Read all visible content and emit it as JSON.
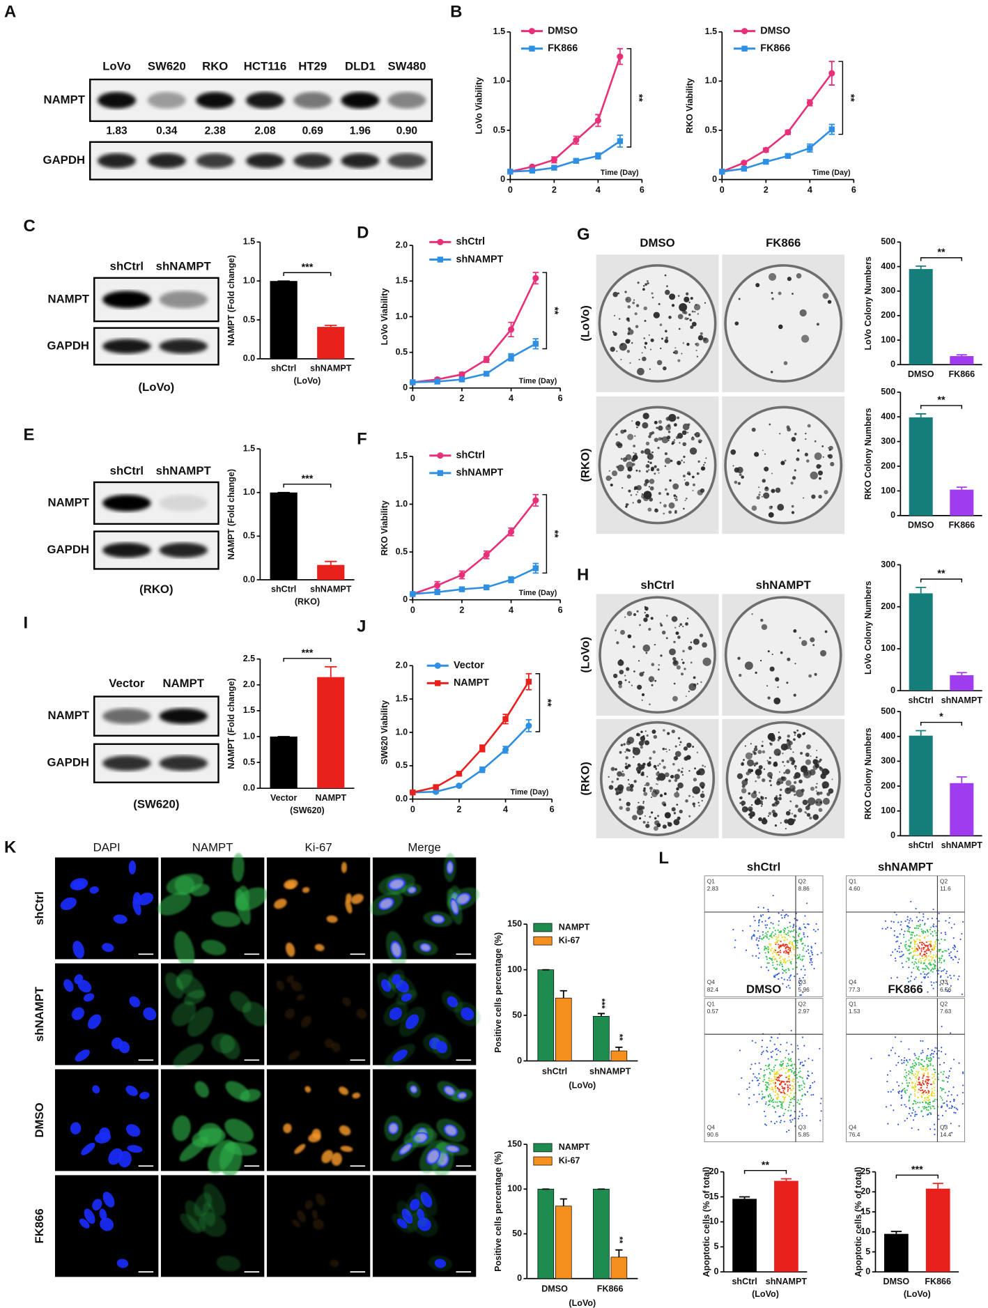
{
  "panel_letters": [
    "A",
    "B",
    "C",
    "D",
    "E",
    "F",
    "G",
    "H",
    "I",
    "J",
    "K",
    "L"
  ],
  "blots": [
    {
      "lanes": [
        "LoVo",
        "SW620",
        "RKO",
        "HCT116",
        "HT29",
        "DLD1",
        "SW480"
      ],
      "rows": [
        "NAMPT",
        "GAPDH"
      ],
      "quantities": [
        "1.83",
        "0.34",
        "2.38",
        "2.08",
        "0.69",
        "1.96",
        "0.90"
      ]
    },
    {
      "lanes": [
        "shCtrl",
        "shNAMPT"
      ],
      "rows": [
        "NAMPT",
        "GAPDH"
      ],
      "caption": "(LoVo)"
    },
    {
      "lanes": [
        "shCtrl",
        "shNAMPT"
      ],
      "rows": [
        "NAMPT",
        "GAPDH"
      ],
      "caption": "(RKO)"
    },
    {
      "lanes": [
        "Vector",
        "NAMPT"
      ],
      "rows": [
        "NAMPT",
        "GAPDH"
      ],
      "caption": "(SW620)"
    }
  ],
  "colony_plates": [
    {
      "columns": [
        "DMSO",
        "FK866"
      ],
      "rows": [
        "(LoVo)",
        "(RKO)"
      ]
    },
    {
      "columns": [
        "shCtrl",
        "shNAMPT"
      ],
      "rows": [
        "(LoVo)",
        "(RKO)"
      ]
    }
  ],
  "immunofluorescence": {
    "columns": [
      "DAPI",
      "NAMPT",
      "Ki-67",
      "Merge"
    ],
    "colors": [
      "#2233dd",
      "#1e9a4a",
      "#f07f7f",
      "#111111"
    ],
    "rows": [
      "shCtrl",
      "shNAMPT",
      "DMSO",
      "FK866"
    ]
  },
  "flow_cytometry": [
    {
      "title": "shCtrl",
      "quadrants": [
        {
          "name": "Q1",
          "value": "2.83"
        },
        {
          "name": "Q2",
          "value": "8.86"
        },
        {
          "name": "Q3",
          "value": "5.96"
        },
        {
          "name": "Q4",
          "value": "82.4"
        }
      ]
    },
    {
      "title": "shNAMPT",
      "quadrants": [
        {
          "name": "Q1",
          "value": "4.60"
        },
        {
          "name": "Q2",
          "value": "11.6"
        },
        {
          "name": "Q3",
          "value": "6.56"
        },
        {
          "name": "Q4",
          "value": "77.3"
        }
      ]
    },
    {
      "title": "DMSO",
      "quadrants": [
        {
          "name": "Q1",
          "value": "0.57"
        },
        {
          "name": "Q2",
          "value": "2.97"
        },
        {
          "name": "Q3",
          "value": "5.85"
        },
        {
          "name": "Q4",
          "value": "90.6"
        }
      ]
    },
    {
      "title": "FK866",
      "quadrants": [
        {
          "name": "Q1",
          "value": "1.53"
        },
        {
          "name": "Q2",
          "value": "7.63"
        },
        {
          "name": "Q3",
          "value": "14.4"
        },
        {
          "name": "Q4",
          "value": "76.4"
        }
      ]
    }
  ],
  "chart_data": [
    {
      "type": "line",
      "ylabel": "LoVo Viability",
      "xlabel": "Time (Day)",
      "x": [
        0,
        1,
        2,
        3,
        4,
        5
      ],
      "xlim": [
        0,
        6
      ],
      "xticks": [
        0,
        2,
        4,
        6
      ],
      "ylim": [
        0,
        1.5
      ],
      "yticks": [
        0,
        0.5,
        {
          "value": 1,
          "label": "1.0"
        },
        1.5
      ],
      "annotation": "**",
      "series": [
        {
          "name": "DMSO",
          "color": "#e8307a",
          "marker": "circle",
          "values": [
            0.08,
            0.13,
            0.2,
            0.4,
            0.6,
            1.25
          ],
          "errors": [
            0,
            0.01,
            0.03,
            0.04,
            0.06,
            0.08
          ]
        },
        {
          "name": "FK866",
          "color": "#2f8fe3",
          "marker": "square",
          "values": [
            0.08,
            0.09,
            0.12,
            0.19,
            0.24,
            0.39
          ],
          "errors": [
            0,
            0.01,
            0.01,
            0.02,
            0.03,
            0.06
          ]
        }
      ]
    },
    {
      "type": "line",
      "ylabel": "RKO Viability",
      "xlabel": "Time (Day)",
      "x": [
        0,
        1,
        2,
        3,
        4,
        5
      ],
      "xlim": [
        0,
        6
      ],
      "xticks": [
        0,
        2,
        4,
        6
      ],
      "ylim": [
        0,
        1.5
      ],
      "yticks": [
        0,
        0.5,
        {
          "value": 1,
          "label": "1.0"
        },
        1.5
      ],
      "annotation": "**",
      "series": [
        {
          "name": "DMSO",
          "color": "#e8307a",
          "marker": "circle",
          "values": [
            0.08,
            0.17,
            0.3,
            0.48,
            0.78,
            1.08
          ],
          "errors": [
            0,
            0.01,
            0.02,
            0.02,
            0.03,
            0.12
          ]
        },
        {
          "name": "FK866",
          "color": "#2f8fe3",
          "marker": "square",
          "values": [
            0.08,
            0.11,
            0.18,
            0.24,
            0.32,
            0.51
          ],
          "errors": [
            0,
            0.01,
            0.02,
            0.02,
            0.04,
            0.05
          ]
        }
      ]
    },
    {
      "type": "bar",
      "ylabel": "NAMPT (Fold change)",
      "categories": [
        "shCtrl",
        "shNAMPT"
      ],
      "values": [
        1,
        0.41
      ],
      "errors": [
        0,
        0.02
      ],
      "colors": [
        "#000000",
        "#e8211d"
      ],
      "ylim": [
        0,
        1.5
      ],
      "yticks": [
        {
          "value": 0,
          "label": "0.0"
        },
        0.5,
        {
          "value": 1,
          "label": "1.0"
        },
        1.5
      ],
      "subtitle": "(LoVo)",
      "annotation": "***"
    },
    {
      "type": "line",
      "ylabel": "LoVo Viability",
      "xlabel": "Time (Day)",
      "x": [
        0,
        1,
        2,
        3,
        4,
        5
      ],
      "xlim": [
        0,
        6
      ],
      "xticks": [
        0,
        2,
        4,
        6
      ],
      "ylim": [
        0,
        2
      ],
      "yticks": [
        0,
        0.5,
        {
          "value": 1,
          "label": "1.0"
        },
        1.5,
        {
          "value": 2,
          "label": "2.0"
        }
      ],
      "annotation": "**",
      "series": [
        {
          "name": "shCtrl",
          "color": "#e8307a",
          "marker": "circle",
          "values": [
            0.08,
            0.12,
            0.19,
            0.4,
            0.82,
            1.54
          ],
          "errors": [
            0,
            0.02,
            0.03,
            0.04,
            0.1,
            0.08
          ]
        },
        {
          "name": "shNAMPT",
          "color": "#2f8fe3",
          "marker": "square",
          "values": [
            0.08,
            0.09,
            0.12,
            0.2,
            0.43,
            0.62
          ],
          "errors": [
            0,
            0.01,
            0.02,
            0.02,
            0.05,
            0.07
          ]
        }
      ]
    },
    {
      "type": "bar",
      "ylabel": "LoVo Colony Numbers",
      "categories": [
        "DMSO",
        "FK866"
      ],
      "values": [
        390,
        35
      ],
      "errors": [
        12,
        5
      ],
      "colors": [
        "#167e7a",
        "#a03cf0"
      ],
      "ylim": [
        0,
        500
      ],
      "yticks": [
        0,
        100,
        200,
        300,
        400,
        500
      ],
      "annotation": "**"
    },
    {
      "type": "bar",
      "ylabel": "RKO Colony Numbers",
      "categories": [
        "DMSO",
        "FK866"
      ],
      "values": [
        398,
        105
      ],
      "errors": [
        14,
        10
      ],
      "colors": [
        "#167e7a",
        "#a03cf0"
      ],
      "ylim": [
        0,
        500
      ],
      "yticks": [
        0,
        100,
        200,
        300,
        400,
        500
      ],
      "annotation": "**"
    },
    {
      "type": "bar",
      "ylabel": "NAMPT (Fold change)",
      "categories": [
        "shCtrl",
        "shNAMPT"
      ],
      "values": [
        1,
        0.17
      ],
      "errors": [
        0,
        0.04
      ],
      "colors": [
        "#000000",
        "#e8211d"
      ],
      "ylim": [
        0,
        1.5
      ],
      "yticks": [
        {
          "value": 0,
          "label": "0.0"
        },
        0.5,
        {
          "value": 1,
          "label": "1.0"
        },
        1.5
      ],
      "subtitle": "(RKO)",
      "annotation": "***"
    },
    {
      "type": "line",
      "ylabel": "RKO Viability",
      "xlabel": "Time (Day)",
      "x": [
        0,
        1,
        2,
        3,
        4,
        5
      ],
      "xlim": [
        0,
        6
      ],
      "xticks": [
        0,
        2,
        4,
        6
      ],
      "ylim": [
        0,
        1.5
      ],
      "yticks": [
        0,
        0.5,
        {
          "value": 1,
          "label": "1.0"
        },
        1.5
      ],
      "annotation": "**",
      "series": [
        {
          "name": "shCtrl",
          "color": "#e8307a",
          "marker": "circle",
          "values": [
            0.06,
            0.15,
            0.26,
            0.47,
            0.71,
            1.04
          ],
          "errors": [
            0,
            0.04,
            0.04,
            0.04,
            0.04,
            0.06
          ]
        },
        {
          "name": "shNAMPT",
          "color": "#2f8fe3",
          "marker": "square",
          "values": [
            0.06,
            0.08,
            0.11,
            0.13,
            0.21,
            0.33
          ],
          "errors": [
            0,
            0.02,
            0.02,
            0.02,
            0.03,
            0.05
          ]
        }
      ]
    },
    {
      "type": "bar",
      "ylabel": "LoVo Colony Numbers",
      "categories": [
        "shCtrl",
        "shNAMPT"
      ],
      "values": [
        232,
        37
      ],
      "errors": [
        14,
        6
      ],
      "colors": [
        "#167e7a",
        "#a03cf0"
      ],
      "ylim": [
        0,
        300
      ],
      "yticks": [
        0,
        100,
        200,
        300
      ],
      "annotation": "**"
    },
    {
      "type": "bar",
      "ylabel": "RKO Colony Numbers",
      "categories": [
        "shCtrl",
        "shNAMPT"
      ],
      "values": [
        403,
        212
      ],
      "errors": [
        20,
        25
      ],
      "colors": [
        "#167e7a",
        "#a03cf0"
      ],
      "ylim": [
        0,
        500
      ],
      "yticks": [
        0,
        100,
        200,
        300,
        400,
        500
      ],
      "annotation": "*"
    },
    {
      "type": "bar",
      "ylabel": "NAMPT (Fold change)",
      "categories": [
        "Vector",
        "NAMPT"
      ],
      "values": [
        1,
        2.15
      ],
      "errors": [
        0,
        0.2
      ],
      "colors": [
        "#000000",
        "#e8211d"
      ],
      "ylim": [
        0,
        2.5
      ],
      "yticks": [
        {
          "value": 0,
          "label": "0.0"
        },
        0.5,
        {
          "value": 1,
          "label": "1.0"
        },
        1.5,
        {
          "value": 2,
          "label": "2.0"
        },
        2.5
      ],
      "subtitle": "(SW620)",
      "annotation": "***"
    },
    {
      "type": "line",
      "ylabel": "SW620 Viability",
      "xlabel": "Time (Day)",
      "x": [
        0,
        1,
        2,
        3,
        4,
        5
      ],
      "xlim": [
        0,
        6
      ],
      "xticks": [
        0,
        2,
        4,
        6
      ],
      "ylim": [
        0,
        2
      ],
      "yticks": [
        {
          "value": 0,
          "label": "0.0"
        },
        0.5,
        {
          "value": 1,
          "label": "1.0"
        },
        1.5,
        {
          "value": 2,
          "label": "2.0"
        }
      ],
      "annotation": "**",
      "series": [
        {
          "name": "Vector",
          "color": "#2f8fe3",
          "marker": "circle",
          "values": [
            0.1,
            0.11,
            0.2,
            0.44,
            0.74,
            1.1
          ],
          "errors": [
            0,
            0.02,
            0.02,
            0.04,
            0.05,
            0.09
          ]
        },
        {
          "name": "NAMPT",
          "color": "#e8211d",
          "marker": "square",
          "values": [
            0.1,
            0.18,
            0.38,
            0.76,
            1.2,
            1.76
          ],
          "errors": [
            0,
            0.02,
            0.03,
            0.05,
            0.07,
            0.12
          ]
        }
      ]
    },
    {
      "type": "grouped_bar",
      "ylabel": "Positive cells percentage (%)",
      "categories": [
        "shCtrl",
        "shNAMPT"
      ],
      "ylim": [
        0,
        150
      ],
      "yticks": [
        0,
        50,
        100,
        150
      ],
      "subtitle": "(LoVo)",
      "series": [
        {
          "name": "NAMPT",
          "color": "#1e8c4f",
          "values": [
            100,
            49
          ],
          "errors": [
            0,
            3
          ],
          "annotations": [
            null,
            "***"
          ]
        },
        {
          "name": "Ki-67",
          "color": "#f5901e",
          "values": [
            69,
            11
          ],
          "errors": [
            8,
            4
          ],
          "annotations": [
            null,
            "**"
          ]
        }
      ]
    },
    {
      "type": "grouped_bar",
      "ylabel": "Positive cells percentage (%)",
      "categories": [
        "DMSO",
        "FK866"
      ],
      "ylim": [
        0,
        150
      ],
      "yticks": [
        0,
        50,
        100,
        150
      ],
      "subtitle": "(LoVo)",
      "series": [
        {
          "name": "NAMPT",
          "color": "#1e8c4f",
          "values": [
            100,
            100
          ],
          "errors": [
            0,
            0
          ],
          "annotations": [
            null,
            null
          ]
        },
        {
          "name": "Ki-67",
          "color": "#f5901e",
          "values": [
            81,
            24
          ],
          "errors": [
            8,
            8
          ],
          "annotations": [
            null,
            "**"
          ]
        }
      ]
    },
    {
      "type": "bar",
      "ylabel": "Apoptotic cells (% of total)",
      "categories": [
        "shCtrl",
        "shNAMPT"
      ],
      "values": [
        14.6,
        18.2
      ],
      "errors": [
        0.4,
        0.4
      ],
      "colors": [
        "#000000",
        "#e8211d"
      ],
      "ylim": [
        0,
        20
      ],
      "yticks": [
        0,
        5,
        10,
        15,
        20
      ],
      "subtitle": "(LoVo)",
      "annotation": "**"
    },
    {
      "type": "bar",
      "ylabel": "Apoptotic cells (% of total)",
      "categories": [
        "DMSO",
        "FK866"
      ],
      "values": [
        9.5,
        20.8
      ],
      "errors": [
        0.6,
        1.3
      ],
      "colors": [
        "#000000",
        "#e8211d"
      ],
      "ylim": [
        0,
        25
      ],
      "yticks": [
        0,
        5,
        10,
        15,
        20,
        25
      ],
      "subtitle": "(LoVo)",
      "annotation": "***"
    }
  ]
}
